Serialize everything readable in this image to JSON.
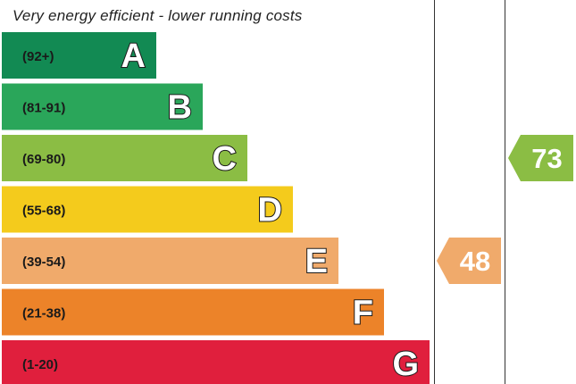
{
  "header": {
    "text": "Very energy efficient - lower running costs"
  },
  "chart_data": {
    "type": "bar",
    "title": "",
    "bands": [
      {
        "range": "(92+)",
        "letter": "A",
        "color": "#128a53"
      },
      {
        "range": "(81-91)",
        "letter": "B",
        "color": "#2aa65a"
      },
      {
        "range": "(69-80)",
        "letter": "C",
        "color": "#8bbd44"
      },
      {
        "range": "(55-68)",
        "letter": "D",
        "color": "#f4cb1c"
      },
      {
        "range": "(39-54)",
        "letter": "E",
        "color": "#f0aa6b"
      },
      {
        "range": "(21-38)",
        "letter": "F",
        "color": "#ec8329"
      },
      {
        "range": "(1-20)",
        "letter": "G",
        "color": "#e01f3d"
      }
    ],
    "ratings": [
      {
        "name": "current",
        "value": 48,
        "band": "E",
        "color": "#f0aa6b"
      },
      {
        "name": "potential",
        "value": 73,
        "band": "C",
        "color": "#8bbd44"
      }
    ]
  }
}
